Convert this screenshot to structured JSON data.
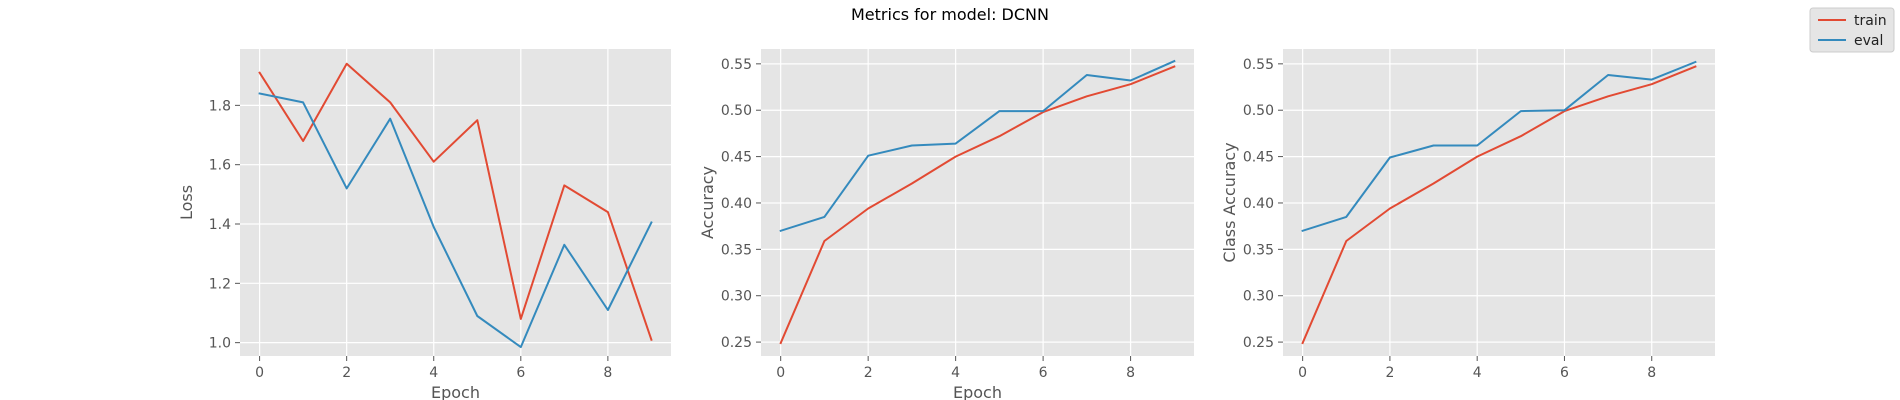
{
  "figure": {
    "title": "Metrics for model: DCNN"
  },
  "legend": {
    "placement": "top-right",
    "entries": [
      {
        "name": "train",
        "color": "#E24A33"
      },
      {
        "name": "eval",
        "color": "#348ABD"
      }
    ]
  },
  "style": {
    "axes_bg": "#E5E5E5",
    "grid_color": "#FFFFFF",
    "tick_color": "#555555"
  },
  "chart_data": [
    {
      "type": "line",
      "title": "",
      "xlabel": "Epoch",
      "ylabel": "Loss",
      "grid": true,
      "xlim": [
        -0.45,
        9.45
      ],
      "ylim": [
        0.955,
        1.99
      ],
      "xticks": [
        0,
        2,
        4,
        6,
        8
      ],
      "yticks": [
        1.0,
        1.2,
        1.4,
        1.6,
        1.8
      ],
      "ytick_labels": [
        "1.0",
        "1.2",
        "1.4",
        "1.6",
        "1.8"
      ],
      "x": [
        0,
        1,
        2,
        3,
        4,
        5,
        6,
        7,
        8,
        9
      ],
      "series": [
        {
          "name": "train",
          "color": "#E24A33",
          "values": [
            1.91,
            1.68,
            1.94,
            1.81,
            1.61,
            1.75,
            1.08,
            1.53,
            1.44,
            1.01
          ]
        },
        {
          "name": "eval",
          "color": "#348ABD",
          "values": [
            1.84,
            1.81,
            1.52,
            1.755,
            1.39,
            1.09,
            0.985,
            1.33,
            1.11,
            1.405
          ]
        }
      ]
    },
    {
      "type": "line",
      "title": "",
      "xlabel": "Epoch",
      "ylabel": "Accuracy",
      "grid": true,
      "xlim": [
        -0.45,
        9.45
      ],
      "ylim": [
        0.235,
        0.566
      ],
      "xticks": [
        0,
        2,
        4,
        6,
        8
      ],
      "yticks": [
        0.25,
        0.3,
        0.35,
        0.4,
        0.45,
        0.5,
        0.55
      ],
      "ytick_labels": [
        "0.25",
        "0.30",
        "0.35",
        "0.40",
        "0.45",
        "0.50",
        "0.55"
      ],
      "x": [
        0,
        1,
        2,
        3,
        4,
        5,
        6,
        7,
        8,
        9
      ],
      "series": [
        {
          "name": "train",
          "color": "#E24A33",
          "values": [
            0.249,
            0.359,
            0.394,
            0.421,
            0.45,
            0.472,
            0.498,
            0.515,
            0.528,
            0.547
          ]
        },
        {
          "name": "eval",
          "color": "#348ABD",
          "values": [
            0.37,
            0.385,
            0.451,
            0.462,
            0.464,
            0.499,
            0.499,
            0.538,
            0.532,
            0.553
          ]
        }
      ]
    },
    {
      "type": "line",
      "title": "",
      "xlabel": "",
      "ylabel": "Class Accuracy",
      "grid": true,
      "xlim": [
        -0.45,
        9.45
      ],
      "ylim": [
        0.235,
        0.566
      ],
      "xticks": [
        0,
        2,
        4,
        6,
        8
      ],
      "yticks": [
        0.25,
        0.3,
        0.35,
        0.4,
        0.45,
        0.5,
        0.55
      ],
      "ytick_labels": [
        "0.25",
        "0.30",
        "0.35",
        "0.40",
        "0.45",
        "0.50",
        "0.55"
      ],
      "x": [
        0,
        1,
        2,
        3,
        4,
        5,
        6,
        7,
        8,
        9
      ],
      "series": [
        {
          "name": "train",
          "color": "#E24A33",
          "values": [
            0.249,
            0.359,
            0.394,
            0.421,
            0.45,
            0.472,
            0.499,
            0.515,
            0.528,
            0.547
          ]
        },
        {
          "name": "eval",
          "color": "#348ABD",
          "values": [
            0.37,
            0.385,
            0.449,
            0.462,
            0.462,
            0.499,
            0.5,
            0.538,
            0.533,
            0.552
          ]
        }
      ]
    }
  ]
}
